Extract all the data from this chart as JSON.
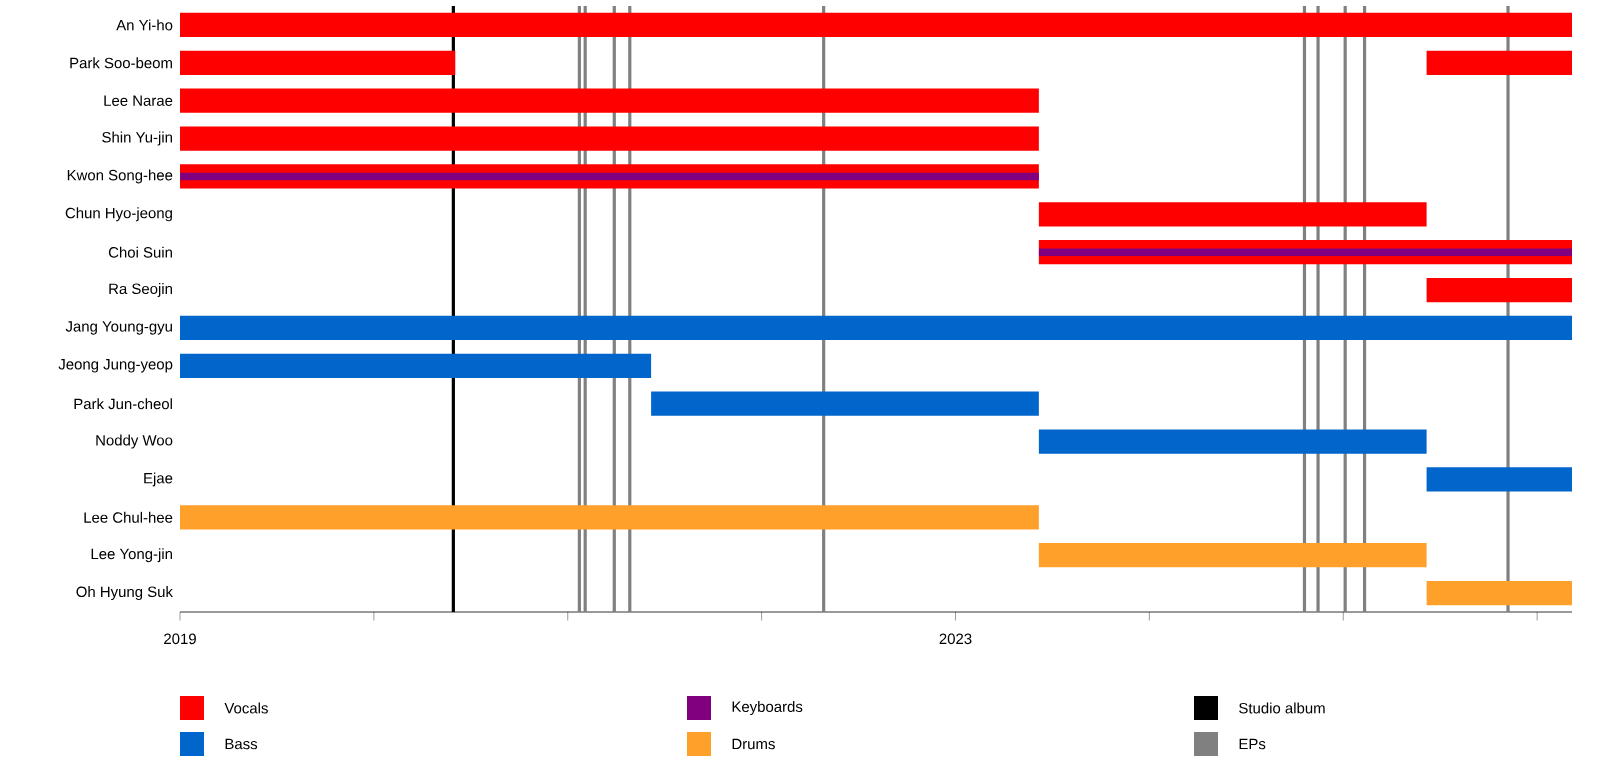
{
  "chart_data": {
    "type": "bar",
    "orientation": "horizontal",
    "categories": [
      "An Yi-ho",
      "Park Soo-beom",
      "Lee Narae",
      "Shin Yu-jin",
      "Kwon Song-hee",
      "Chun Hyo-jeong",
      "Choi Suin",
      "Ra Seojin",
      "Jang Young-gyu",
      "Jeong Jung-yeop",
      "Park Jun-cheol",
      "Noddy Woo",
      "Ejae",
      "Lee Chul-hee",
      "Lee Yong-jin",
      "Oh Hyung Suk"
    ],
    "series": [
      {
        "name": "Vocals",
        "color": "#ff0000",
        "values": [
          7.18,
          1.42,
          4.43,
          4.43,
          4.43,
          2.0,
          2.75,
          0.75,
          null,
          null,
          null,
          null,
          null,
          null,
          null,
          null
        ],
        "base": [
          2019,
          2019,
          2019,
          2019,
          2019,
          2023.43,
          2023.43,
          2025.43,
          null,
          null,
          null,
          null,
          null,
          null,
          null,
          null
        ]
      },
      {
        "name": "Bass",
        "color": "#0066cc",
        "values": [
          null,
          null,
          null,
          null,
          null,
          null,
          null,
          null,
          7.18,
          2.43,
          2.0,
          2.0,
          0.75,
          null,
          null,
          null
        ],
        "base": [
          null,
          null,
          null,
          null,
          null,
          null,
          null,
          null,
          2019,
          2019,
          2021.43,
          2023.43,
          2025.43,
          null,
          null,
          null
        ]
      },
      {
        "name": "Keyboards",
        "color": "#800080",
        "values": [
          null,
          null,
          null,
          null,
          4.43,
          null,
          2.75,
          null,
          null,
          null,
          null,
          null,
          null,
          null,
          null,
          null
        ],
        "base": [
          null,
          null,
          null,
          null,
          2019,
          null,
          2023.43,
          null,
          null,
          null,
          null,
          null,
          null,
          null,
          null,
          null
        ]
      },
      {
        "name": "Drums",
        "color": "#ffa02a",
        "values": [
          null,
          null,
          null,
          null,
          null,
          null,
          null,
          null,
          null,
          null,
          null,
          null,
          null,
          4.43,
          2.0,
          0.75
        ],
        "base": [
          null,
          null,
          null,
          null,
          null,
          null,
          null,
          null,
          null,
          null,
          null,
          null,
          null,
          2019,
          2023.43,
          2025.43
        ]
      },
      {
        "color": "#ff0000",
        "values": [
          null,
          0.75,
          null,
          null,
          null,
          null,
          null,
          null,
          null,
          null,
          null,
          null,
          null,
          null,
          null,
          null
        ],
        "base": [
          null,
          2025.43,
          null,
          null,
          null,
          null,
          null,
          null,
          null,
          null,
          null,
          null,
          null,
          null,
          null,
          null
        ]
      }
    ],
    "xlim": [
      2019,
      2026.18
    ],
    "xticks": [
      2019,
      {
        "value": 2020,
        "label": null
      },
      {
        "value": 2021,
        "label": null
      },
      {
        "value": 2022,
        "label": null
      },
      2023,
      {
        "value": 2024,
        "label": null
      },
      {
        "value": 2025,
        "label": null
      },
      {
        "value": 2026,
        "label": null
      }
    ],
    "ref_lines": [
      {
        "axis": "x",
        "value": 2020.41,
        "label": "Studio album",
        "color": "#000000"
      },
      {
        "axis": "x",
        "value": 2021.06,
        "label": "EPs",
        "color": "#808080"
      },
      {
        "axis": "x",
        "value": 2021.09,
        "color": "#808080"
      },
      {
        "axis": "x",
        "value": 2021.24,
        "color": "#808080"
      },
      {
        "axis": "x",
        "value": 2021.32,
        "color": "#808080"
      },
      {
        "axis": "x",
        "value": 2022.32,
        "color": "#808080"
      },
      {
        "axis": "x",
        "value": 2024.8,
        "color": "#808080"
      },
      {
        "axis": "x",
        "value": 2024.87,
        "color": "#808080"
      },
      {
        "axis": "x",
        "value": 2025.01,
        "color": "#808080"
      },
      {
        "axis": "x",
        "value": 2025.11,
        "color": "#808080"
      },
      {
        "axis": "x",
        "value": 2025.85,
        "color": "#808080"
      }
    ],
    "legend": "bottom"
  }
}
